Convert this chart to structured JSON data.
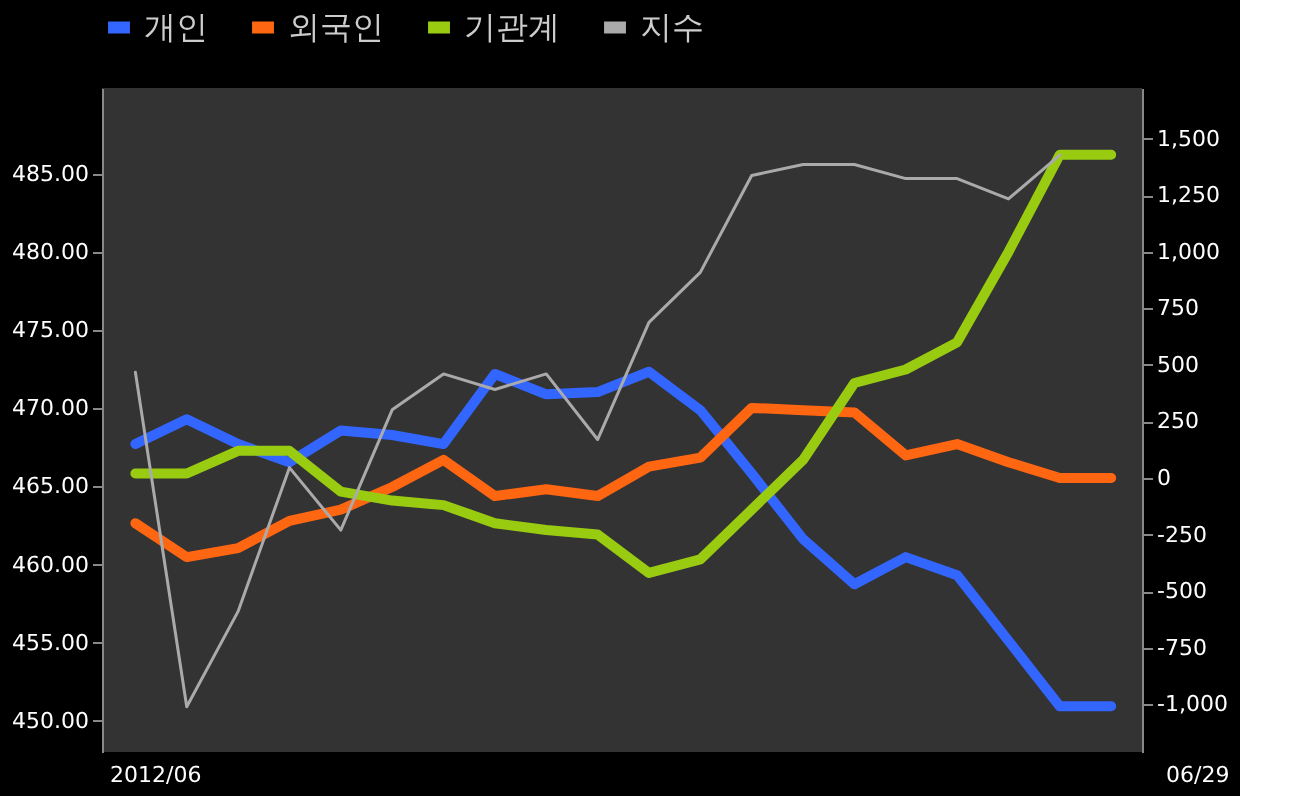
{
  "chart_data": {
    "type": "line",
    "categories": [
      null,
      null,
      null,
      null,
      null,
      null,
      null,
      null,
      null,
      null,
      null,
      null,
      null,
      null,
      null,
      null,
      null,
      null,
      null,
      null
    ],
    "series": [
      {
        "name": "개인",
        "color": "#3366ff",
        "axis": "y2",
        "values": [
          150,
          260,
          150,
          70,
          210,
          190,
          150,
          460,
          370,
          380,
          470,
          300,
          20,
          -270,
          -470,
          -350,
          -430,
          -720,
          -1010,
          -1010
        ]
      },
      {
        "name": "외국인",
        "color": "#ff6611",
        "axis": "y2",
        "values": [
          -200,
          -350,
          -310,
          -190,
          -140,
          -40,
          80,
          -80,
          -50,
          -80,
          50,
          90,
          310,
          300,
          290,
          100,
          150,
          70,
          0,
          0
        ]
      },
      {
        "name": "기관계",
        "color": "#99cc11",
        "axis": "y2",
        "values": [
          20,
          20,
          120,
          120,
          -60,
          -100,
          -120,
          -200,
          -230,
          -250,
          -420,
          -360,
          -140,
          80,
          420,
          480,
          600,
          1000,
          1430,
          1430
        ]
      },
      {
        "name": "지수",
        "color": "#aaaaaa",
        "values": [
          472.3,
          450.9,
          457.0,
          466.2,
          462.2,
          469.9,
          472.2,
          471.2,
          472.2,
          468.0,
          475.5,
          478.7,
          484.9,
          485.6,
          485.6,
          484.7,
          484.7,
          483.4,
          486.2,
          null
        ]
      }
    ],
    "ylim": [
      448,
      490.5
    ],
    "yticks": [
      {
        "value": 450,
        "label": "450.00"
      },
      {
        "value": 455,
        "label": "455.00"
      },
      {
        "value": 460,
        "label": "460.00"
      },
      {
        "value": 465,
        "label": "465.00"
      },
      {
        "value": 470,
        "label": "470.00"
      },
      {
        "value": 475,
        "label": "475.00"
      },
      {
        "value": 480,
        "label": "480.00"
      },
      {
        "value": 485,
        "label": "485.00"
      }
    ],
    "y2lim": [
      -1212,
      1725
    ],
    "y2ticks": [
      {
        "value": -1000,
        "label": "-1,000"
      },
      {
        "value": -750,
        "label": "-750"
      },
      {
        "value": -500,
        "label": "-500"
      },
      {
        "value": -250,
        "label": "-250"
      },
      0,
      250,
      500,
      750,
      {
        "value": 1000,
        "label": "1,000"
      },
      {
        "value": 1250,
        "label": "1,250"
      },
      {
        "value": 1500,
        "label": "1,500"
      }
    ],
    "legend": "top",
    "annotations": [
      "2012/06",
      "06/29"
    ]
  }
}
